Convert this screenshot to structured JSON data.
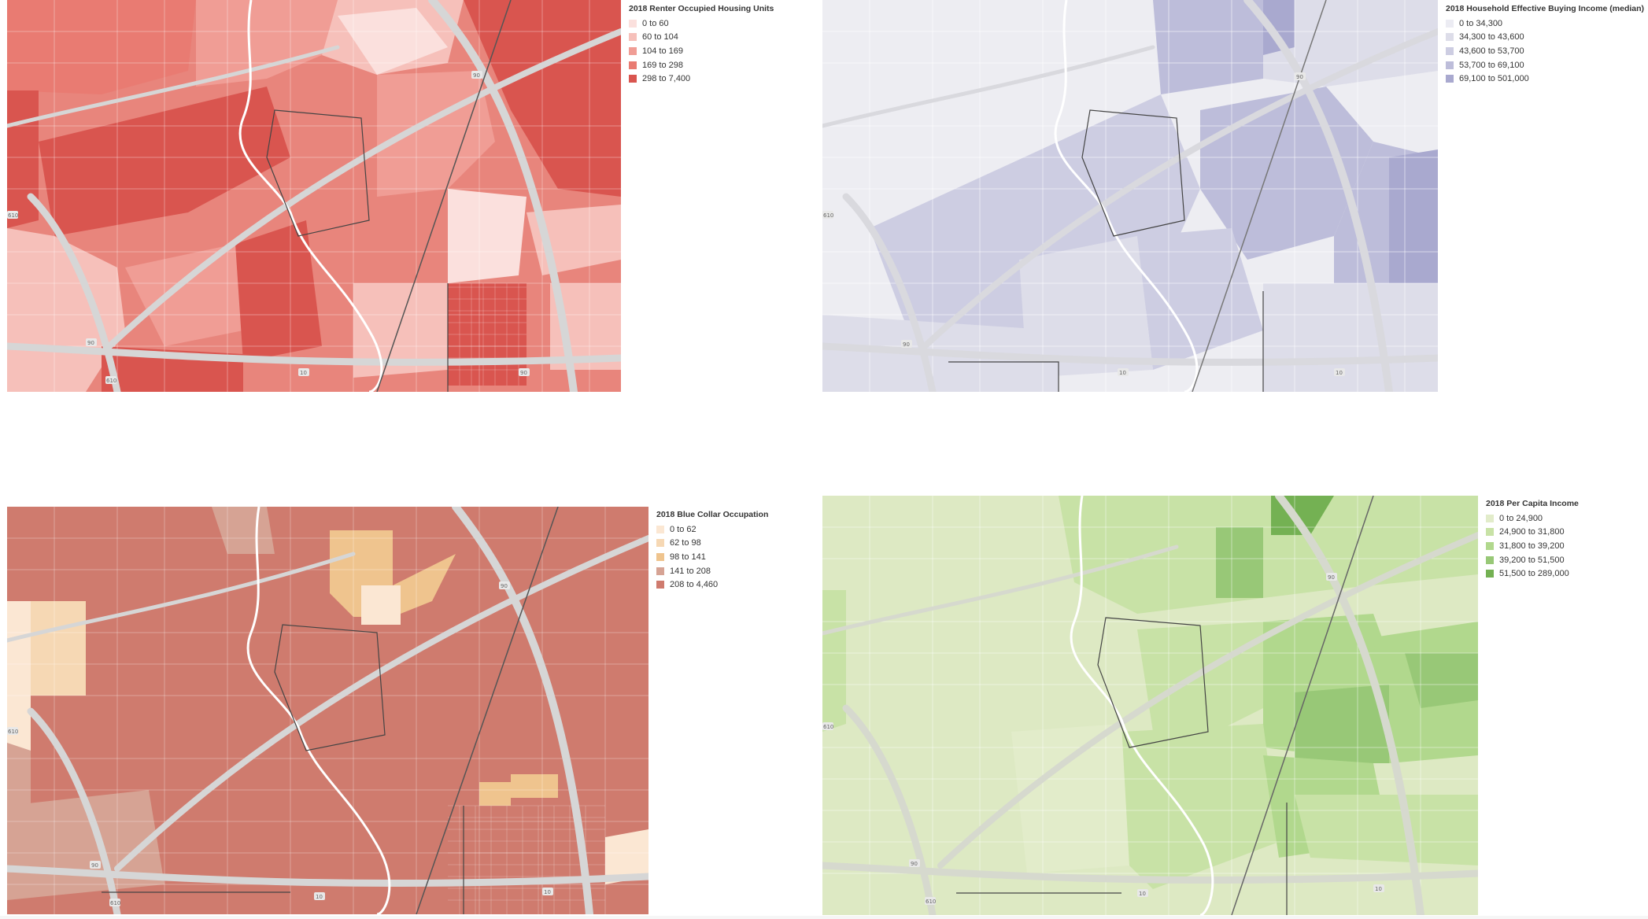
{
  "panels": [
    {
      "id": "renter",
      "legend_title": "2018 Renter Occupied Housing Units",
      "palette": {
        "background": "#e8857c",
        "roads": "#ffffff",
        "highway": "#d6d6d6"
      },
      "legend": [
        {
          "label": "0 to 60",
          "color": "#fbe0dd"
        },
        {
          "label": "60 to 104",
          "color": "#f6c0ba"
        },
        {
          "label": "104 to 169",
          "color": "#f09d95"
        },
        {
          "label": "169 to 298",
          "color": "#e97b72"
        },
        {
          "label": "298 to 7,400",
          "color": "#d9554f"
        }
      ],
      "highway_shields": [
        "90",
        "90",
        "610",
        "610",
        "10",
        "90"
      ]
    },
    {
      "id": "household-income",
      "legend_title": "2018 Household Effective Buying Income (median)",
      "palette": {
        "background": "#ededf2",
        "roads": "#ffffff",
        "highway": "#d9d9de"
      },
      "legend": [
        {
          "label": "0 to 34,300",
          "color": "#ececf3"
        },
        {
          "label": "34,300 to 43,600",
          "color": "#dddde9"
        },
        {
          "label": "43,600 to 53,700",
          "color": "#cdcde2"
        },
        {
          "label": "53,700 to 69,100",
          "color": "#bdbdda"
        },
        {
          "label": "69,100 to 501,000",
          "color": "#a9a9cf"
        }
      ],
      "highway_shields": [
        "90",
        "90",
        "610",
        "10",
        "10"
      ]
    },
    {
      "id": "blue-collar",
      "legend_title": "2018 Blue Collar Occupation",
      "palette": {
        "background": "#d17f72",
        "roads": "#ffffff",
        "highway": "#d6d6d6"
      },
      "legend": [
        {
          "label": "0 to 62",
          "color": "#fbe7d3"
        },
        {
          "label": "62 to 98",
          "color": "#f6d8b4"
        },
        {
          "label": "98 to 141",
          "color": "#efc48e"
        },
        {
          "label": "141 to 208",
          "color": "#d6a394"
        },
        {
          "label": "208 to 4,460",
          "color": "#cf7b6e"
        }
      ],
      "highway_shields": [
        "90",
        "90",
        "610",
        "610",
        "10",
        "10"
      ]
    },
    {
      "id": "per-capita",
      "legend_title": "2018 Per Capita Income",
      "palette": {
        "background": "#dde9c3",
        "roads": "#ffffff",
        "highway": "#d6d9ce"
      },
      "legend": [
        {
          "label": "0 to 24,900",
          "color": "#e2ecca"
        },
        {
          "label": "24,900 to 31,800",
          "color": "#c8e2a6"
        },
        {
          "label": "31,800 to 39,200",
          "color": "#b1d88d"
        },
        {
          "label": "39,200 to 51,500",
          "color": "#98c877"
        },
        {
          "label": "51,500 to 289,000",
          "color": "#74b153"
        }
      ],
      "highway_shields": [
        "90",
        "90",
        "610",
        "610",
        "10",
        "10"
      ]
    }
  ]
}
